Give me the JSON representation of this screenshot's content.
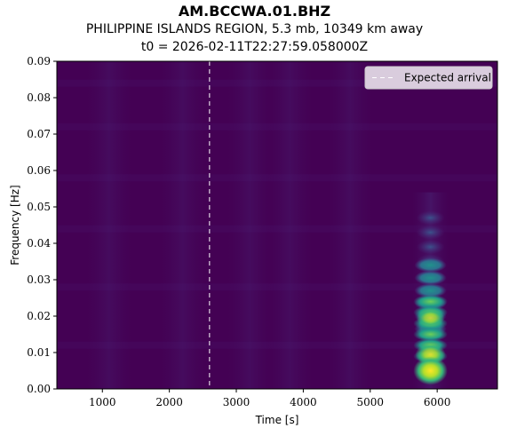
{
  "header": {
    "station": "AM.BCCWA.01.BHZ",
    "event": "PHILIPPINE ISLANDS REGION, 5.3 mb, 10349 km away",
    "origin_time": "t0 = 2026-02-11T22:27:59.058000Z"
  },
  "chart_data": {
    "type": "heatmap",
    "title": "AM.BCCWA.01.BHZ",
    "xlabel": "Time [s]",
    "ylabel": "Frequency [Hz]",
    "xlim": [
      320,
      6900
    ],
    "ylim": [
      0.0,
      0.09
    ],
    "x_ticks": [
      1000,
      2000,
      3000,
      4000,
      5000,
      6000
    ],
    "x_tick_labels": [
      "1000",
      "2000",
      "3000",
      "4000",
      "5000",
      "6000"
    ],
    "y_ticks": [
      0.0,
      0.01,
      0.02,
      0.03,
      0.04,
      0.05,
      0.06,
      0.07,
      0.08,
      0.09
    ],
    "y_tick_labels": [
      "0.00",
      "0.01",
      "0.02",
      "0.03",
      "0.04",
      "0.05",
      "0.06",
      "0.07",
      "0.08",
      "0.09"
    ],
    "colormap": "viridis",
    "expected_arrival": {
      "time": 2600,
      "label": "Expected arrival",
      "style": "dashed",
      "color": "#ffffff"
    },
    "legend_position": "top-right",
    "energy_burst": {
      "time_center": 5900,
      "time_width": 150,
      "peak_frequency": 0.005,
      "max_frequency": 0.05,
      "description_points": [
        {
          "time": 5900,
          "frequency": 0.005,
          "intensity": 1.0
        },
        {
          "time": 5900,
          "frequency": 0.02,
          "intensity": 0.8
        },
        {
          "time": 5900,
          "frequency": 0.03,
          "intensity": 0.5
        },
        {
          "time": 5900,
          "frequency": 0.045,
          "intensity": 0.3
        }
      ]
    }
  }
}
